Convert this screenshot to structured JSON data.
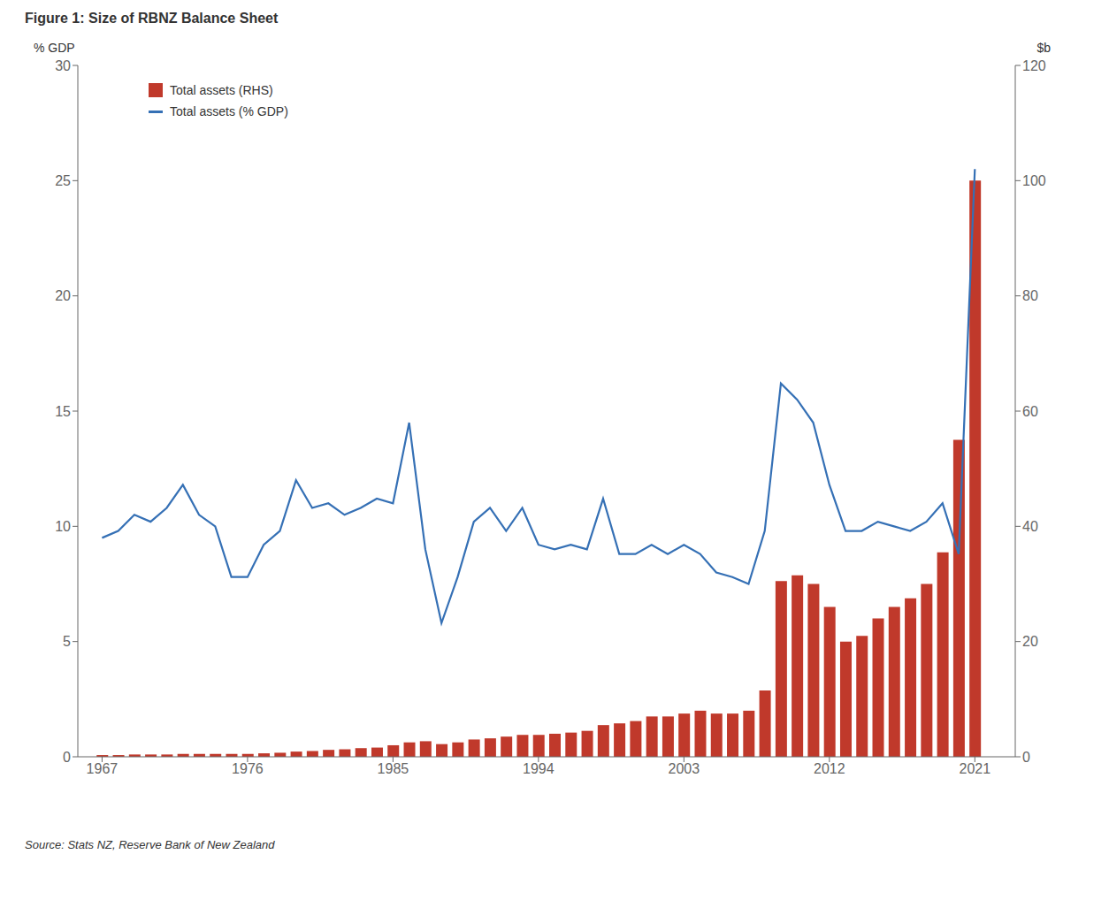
{
  "chart_data": {
    "type": "combo",
    "title": "Figure 1: Size of RBNZ Balance Sheet",
    "source": "Source: Stats NZ, Reserve Bank of New Zealand",
    "y_label": "% GDP",
    "y2_label": "$b",
    "x": [
      1967,
      1968,
      1969,
      1970,
      1971,
      1972,
      1973,
      1974,
      1975,
      1976,
      1977,
      1978,
      1979,
      1980,
      1981,
      1982,
      1983,
      1984,
      1985,
      1986,
      1987,
      1988,
      1989,
      1990,
      1991,
      1992,
      1993,
      1994,
      1995,
      1996,
      1997,
      1998,
      1999,
      2000,
      2001,
      2002,
      2003,
      2004,
      2005,
      2006,
      2007,
      2008,
      2009,
      2010,
      2011,
      2012,
      2013,
      2014,
      2015,
      2016,
      2017,
      2018,
      2019,
      2020,
      2021
    ],
    "xlim": [
      1965.5,
      2023.5
    ],
    "xticks": [
      1967,
      1976,
      1985,
      1994,
      2003,
      2012,
      2021
    ],
    "ylim": [
      0,
      30
    ],
    "yticks": [
      0,
      5,
      10,
      15,
      20,
      25,
      30
    ],
    "y2lim": [
      0,
      120
    ],
    "y2ticks": [
      0,
      20,
      40,
      60,
      80,
      100,
      120
    ],
    "grid": false,
    "legend": "upper left",
    "series": [
      {
        "name": "Total assets (RHS)",
        "type": "bar",
        "color": "#c0392b",
        "axis": "y2",
        "values": [
          0.3,
          0.3,
          0.4,
          0.4,
          0.4,
          0.5,
          0.5,
          0.5,
          0.5,
          0.5,
          0.6,
          0.7,
          0.9,
          1.0,
          1.2,
          1.3,
          1.5,
          1.6,
          2.0,
          2.5,
          2.7,
          2.2,
          2.5,
          3.0,
          3.2,
          3.5,
          3.8,
          3.8,
          4.0,
          4.2,
          4.5,
          5.5,
          5.8,
          6.2,
          7.0,
          7.0,
          7.5,
          8.0,
          7.5,
          7.5,
          8.0,
          11.5,
          30.5,
          31.5,
          30.0,
          26.0,
          20.0,
          21.0,
          24.0,
          26.0,
          27.5,
          30.0,
          35.5,
          55.0,
          100.0
        ]
      },
      {
        "name": "Total assets (% GDP)",
        "type": "line",
        "color": "#3570b5",
        "axis": "y",
        "values": [
          9.5,
          9.8,
          10.5,
          10.2,
          10.8,
          11.8,
          10.5,
          10.0,
          7.8,
          7.8,
          9.2,
          9.8,
          12.0,
          10.8,
          11.0,
          10.5,
          10.8,
          11.2,
          11.0,
          14.5,
          9.0,
          5.8,
          7.8,
          10.2,
          10.8,
          9.8,
          10.8,
          9.2,
          9.0,
          9.2,
          9.0,
          11.2,
          8.8,
          8.8,
          9.2,
          8.8,
          9.2,
          8.8,
          8.0,
          7.8,
          7.5,
          9.8,
          16.2,
          15.5,
          14.5,
          11.8,
          9.8,
          9.8,
          10.2,
          10.0,
          9.8,
          10.2,
          11.0,
          8.8,
          25.5
        ]
      }
    ]
  }
}
